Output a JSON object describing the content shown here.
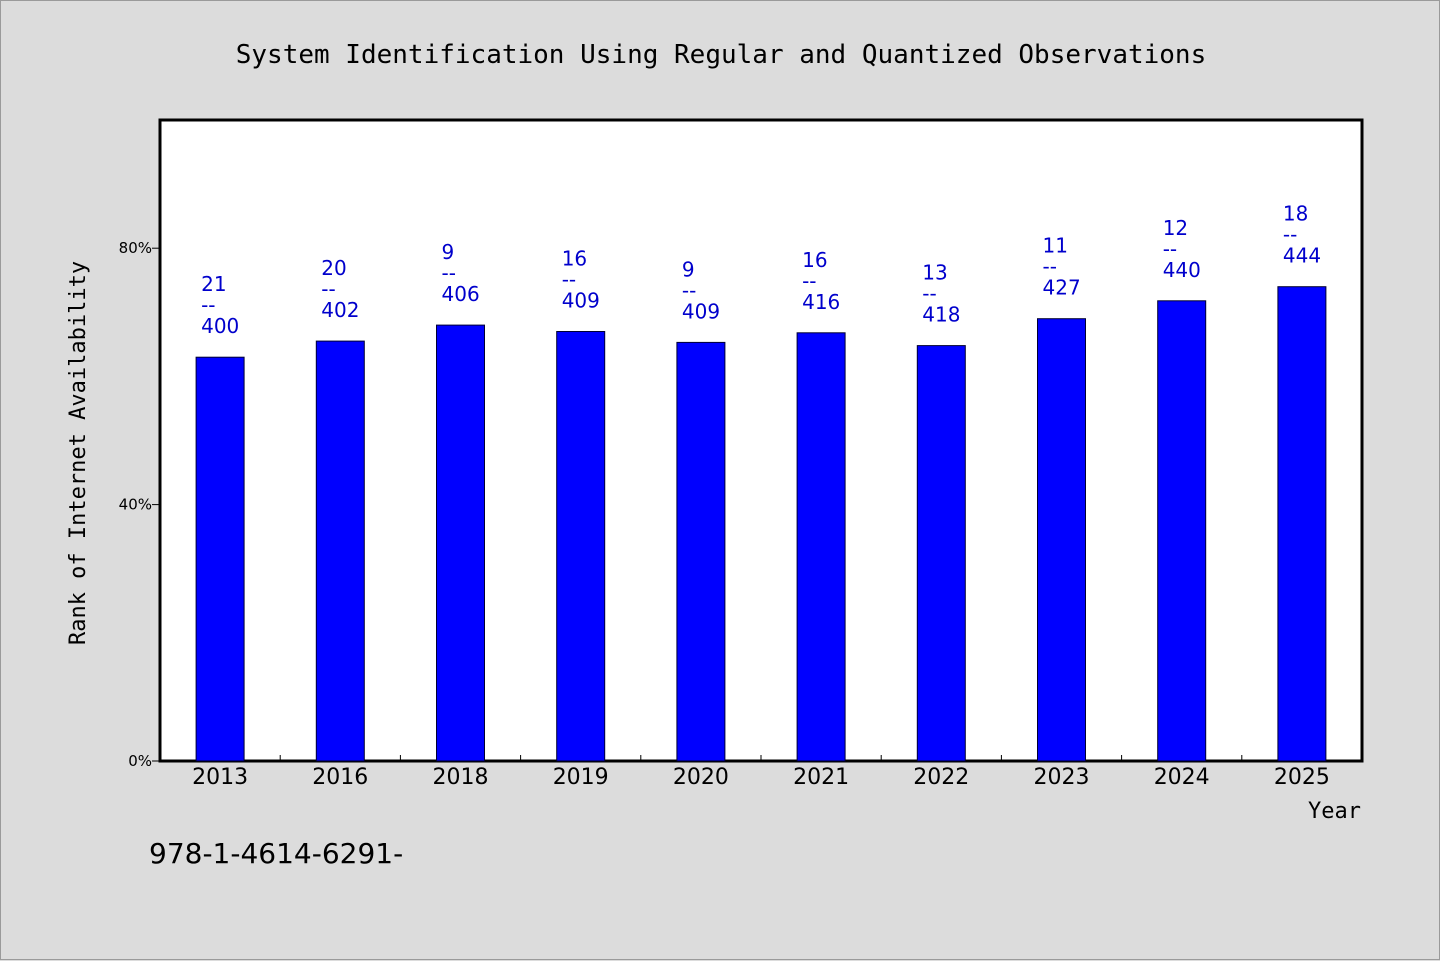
{
  "chart_data": {
    "type": "bar",
    "title": "System Identification Using Regular and Quantized Observations",
    "xlabel": "Year",
    "ylabel": "Rank of Internet Availability",
    "categories": [
      "2013",
      "2016",
      "2018",
      "2019",
      "2020",
      "2021",
      "2022",
      "2023",
      "2024",
      "2025"
    ],
    "values": [
      63,
      65.5,
      68,
      67,
      65.3,
      66.8,
      64.8,
      69,
      71.8,
      74
    ],
    "bar_labels": [
      {
        "top": "21",
        "sep": "--",
        "bottom": "400"
      },
      {
        "top": "20",
        "sep": "--",
        "bottom": "402"
      },
      {
        "top": "9",
        "sep": "--",
        "bottom": "406"
      },
      {
        "top": "16",
        "sep": "--",
        "bottom": "409"
      },
      {
        "top": "9",
        "sep": "--",
        "bottom": "409"
      },
      {
        "top": "16",
        "sep": "--",
        "bottom": "416"
      },
      {
        "top": "13",
        "sep": "--",
        "bottom": "418"
      },
      {
        "top": "11",
        "sep": "--",
        "bottom": "427"
      },
      {
        "top": "12",
        "sep": "--",
        "bottom": "440"
      },
      {
        "top": "18",
        "sep": "--",
        "bottom": "444"
      }
    ],
    "yticks": [
      {
        "value": 0,
        "label": "0%"
      },
      {
        "value": 40,
        "label": "40%"
      },
      {
        "value": 80,
        "label": "80%"
      }
    ],
    "ylim": [
      0,
      100
    ],
    "grid": false,
    "bar_color": "#0000ff",
    "label_color": "#0000cc"
  },
  "footnote": "978-1-4614-6291-"
}
